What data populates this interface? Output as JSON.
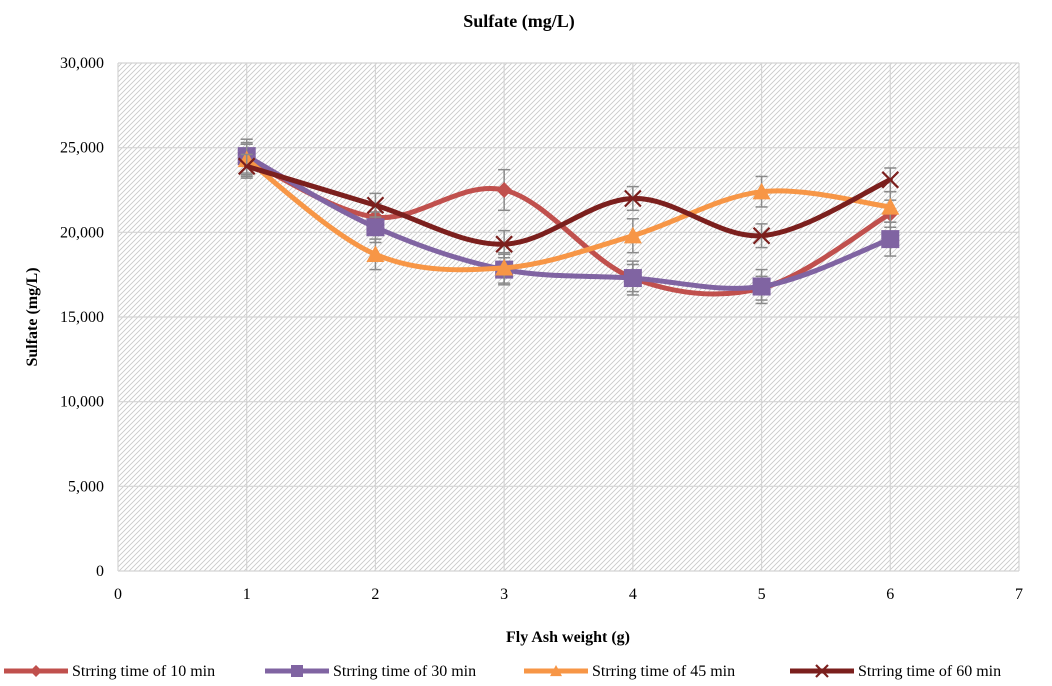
{
  "chart_data": {
    "type": "line",
    "title": "Sulfate (mg/L)",
    "xlabel": "Fly Ash weight (g)",
    "ylabel": "Sulfate  (mg/L)",
    "xlim": [
      0,
      7
    ],
    "ylim": [
      0,
      30000
    ],
    "x_ticks": [
      0,
      1,
      2,
      3,
      4,
      5,
      6,
      7
    ],
    "y_ticks": [
      0,
      5000,
      10000,
      15000,
      20000,
      25000,
      30000
    ],
    "y_tick_labels": [
      "0",
      "5,000",
      "10,000",
      "15,000",
      "20,000",
      "25,000",
      "30,000"
    ],
    "grid": true,
    "smooth": true,
    "legend_position": "bottom",
    "x": [
      1,
      2,
      3,
      4,
      5,
      6
    ],
    "series": [
      {
        "name": "Strring time of 10 min",
        "color": "#C0504D",
        "marker": "diamond",
        "values": [
          24300,
          20900,
          22500,
          17300,
          16700,
          21100
        ],
        "errors": [
          900,
          800,
          1200,
          800,
          700,
          800
        ]
      },
      {
        "name": "Strring time of 30 min",
        "color": "#8064A2",
        "marker": "square",
        "values": [
          24500,
          20300,
          17800,
          17300,
          16800,
          19600
        ],
        "errors": [
          1000,
          900,
          900,
          1000,
          1000,
          1000
        ]
      },
      {
        "name": "Strring time of 45 min",
        "color": "#F79646",
        "marker": "triangle",
        "values": [
          24300,
          18700,
          17900,
          19800,
          22400,
          21500
        ],
        "errors": [
          1000,
          900,
          900,
          1000,
          900,
          900
        ]
      },
      {
        "name": "Strring time of 60 min",
        "color": "#7B1F1D",
        "marker": "x",
        "values": [
          23900,
          21600,
          19300,
          22000,
          19800,
          23100
        ],
        "errors": [
          700,
          700,
          800,
          700,
          700,
          700
        ]
      }
    ]
  }
}
